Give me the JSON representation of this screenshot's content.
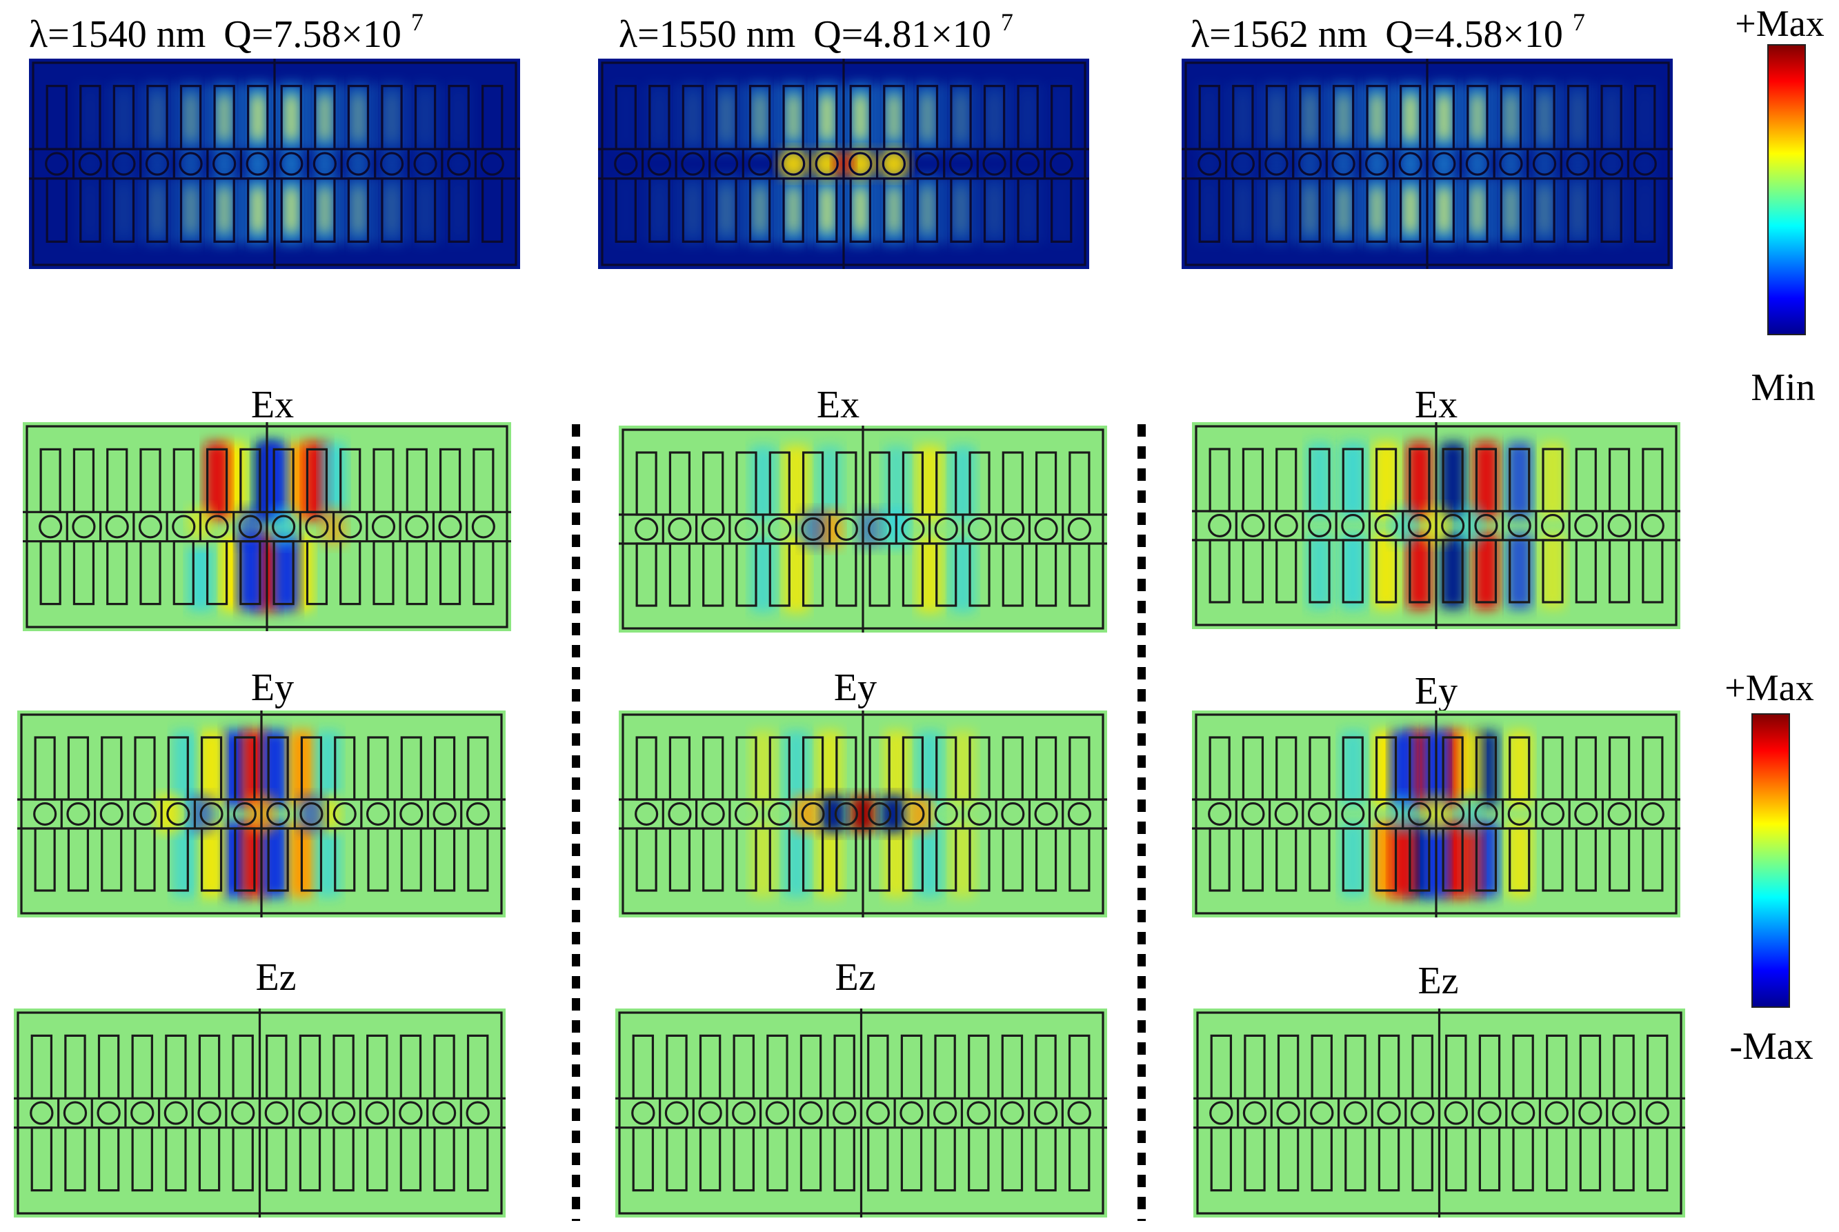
{
  "modes": [
    {
      "wavelength": "λ=1540 nm",
      "q_label": "Q=7.58×10",
      "q_exponent": "7"
    },
    {
      "wavelength": "λ=1550 nm",
      "q_label": "Q=4.81×10",
      "q_exponent": "7"
    },
    {
      "wavelength": "λ=1562 nm",
      "q_label": "Q=4.58×10",
      "q_exponent": "7"
    }
  ],
  "component_labels": [
    "Ex",
    "Ey",
    "Ez"
  ],
  "colorbar_intensity": {
    "top": "+Max",
    "bottom": "Min"
  },
  "colorbar_field": {
    "top": "+Max",
    "bottom": "-Max"
  },
  "colors": {
    "intensity_background": "#00148c",
    "field_zero": "#8ce680",
    "outline": "#1a1a1a",
    "separator": "#000000"
  }
}
